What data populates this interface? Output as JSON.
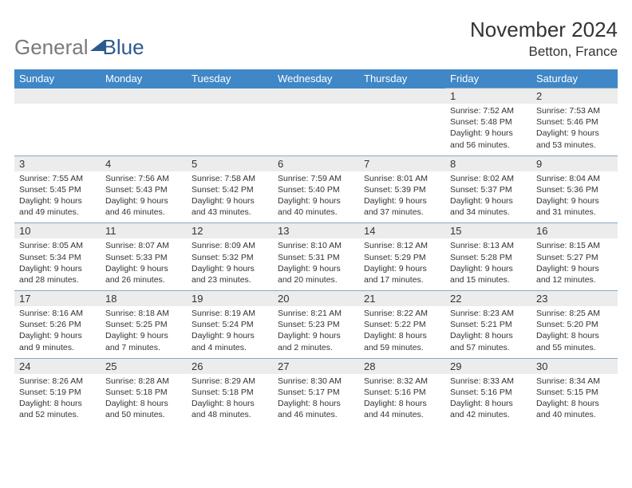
{
  "logo": {
    "part1": "General",
    "part2": "Blue"
  },
  "header": {
    "month": "November 2024",
    "location": "Betton, France"
  },
  "colors": {
    "header_bg": "#3f87c7",
    "header_fg": "#ffffff",
    "numrow_bg": "#ececec",
    "numrow_border": "#8aa9c4",
    "body_text": "#333333",
    "logo_gray": "#7a7a7a",
    "logo_blue": "#2c5a8f"
  },
  "dow": [
    "Sunday",
    "Monday",
    "Tuesday",
    "Wednesday",
    "Thursday",
    "Friday",
    "Saturday"
  ],
  "weeks": [
    {
      "nums": [
        "",
        "",
        "",
        "",
        "",
        "1",
        "2"
      ],
      "cells": [
        null,
        null,
        null,
        null,
        null,
        {
          "sunrise": "Sunrise: 7:52 AM",
          "sunset": "Sunset: 5:48 PM",
          "d1": "Daylight: 9 hours",
          "d2": "and 56 minutes."
        },
        {
          "sunrise": "Sunrise: 7:53 AM",
          "sunset": "Sunset: 5:46 PM",
          "d1": "Daylight: 9 hours",
          "d2": "and 53 minutes."
        }
      ]
    },
    {
      "nums": [
        "3",
        "4",
        "5",
        "6",
        "7",
        "8",
        "9"
      ],
      "cells": [
        {
          "sunrise": "Sunrise: 7:55 AM",
          "sunset": "Sunset: 5:45 PM",
          "d1": "Daylight: 9 hours",
          "d2": "and 49 minutes."
        },
        {
          "sunrise": "Sunrise: 7:56 AM",
          "sunset": "Sunset: 5:43 PM",
          "d1": "Daylight: 9 hours",
          "d2": "and 46 minutes."
        },
        {
          "sunrise": "Sunrise: 7:58 AM",
          "sunset": "Sunset: 5:42 PM",
          "d1": "Daylight: 9 hours",
          "d2": "and 43 minutes."
        },
        {
          "sunrise": "Sunrise: 7:59 AM",
          "sunset": "Sunset: 5:40 PM",
          "d1": "Daylight: 9 hours",
          "d2": "and 40 minutes."
        },
        {
          "sunrise": "Sunrise: 8:01 AM",
          "sunset": "Sunset: 5:39 PM",
          "d1": "Daylight: 9 hours",
          "d2": "and 37 minutes."
        },
        {
          "sunrise": "Sunrise: 8:02 AM",
          "sunset": "Sunset: 5:37 PM",
          "d1": "Daylight: 9 hours",
          "d2": "and 34 minutes."
        },
        {
          "sunrise": "Sunrise: 8:04 AM",
          "sunset": "Sunset: 5:36 PM",
          "d1": "Daylight: 9 hours",
          "d2": "and 31 minutes."
        }
      ]
    },
    {
      "nums": [
        "10",
        "11",
        "12",
        "13",
        "14",
        "15",
        "16"
      ],
      "cells": [
        {
          "sunrise": "Sunrise: 8:05 AM",
          "sunset": "Sunset: 5:34 PM",
          "d1": "Daylight: 9 hours",
          "d2": "and 28 minutes."
        },
        {
          "sunrise": "Sunrise: 8:07 AM",
          "sunset": "Sunset: 5:33 PM",
          "d1": "Daylight: 9 hours",
          "d2": "and 26 minutes."
        },
        {
          "sunrise": "Sunrise: 8:09 AM",
          "sunset": "Sunset: 5:32 PM",
          "d1": "Daylight: 9 hours",
          "d2": "and 23 minutes."
        },
        {
          "sunrise": "Sunrise: 8:10 AM",
          "sunset": "Sunset: 5:31 PM",
          "d1": "Daylight: 9 hours",
          "d2": "and 20 minutes."
        },
        {
          "sunrise": "Sunrise: 8:12 AM",
          "sunset": "Sunset: 5:29 PM",
          "d1": "Daylight: 9 hours",
          "d2": "and 17 minutes."
        },
        {
          "sunrise": "Sunrise: 8:13 AM",
          "sunset": "Sunset: 5:28 PM",
          "d1": "Daylight: 9 hours",
          "d2": "and 15 minutes."
        },
        {
          "sunrise": "Sunrise: 8:15 AM",
          "sunset": "Sunset: 5:27 PM",
          "d1": "Daylight: 9 hours",
          "d2": "and 12 minutes."
        }
      ]
    },
    {
      "nums": [
        "17",
        "18",
        "19",
        "20",
        "21",
        "22",
        "23"
      ],
      "cells": [
        {
          "sunrise": "Sunrise: 8:16 AM",
          "sunset": "Sunset: 5:26 PM",
          "d1": "Daylight: 9 hours",
          "d2": "and 9 minutes."
        },
        {
          "sunrise": "Sunrise: 8:18 AM",
          "sunset": "Sunset: 5:25 PM",
          "d1": "Daylight: 9 hours",
          "d2": "and 7 minutes."
        },
        {
          "sunrise": "Sunrise: 8:19 AM",
          "sunset": "Sunset: 5:24 PM",
          "d1": "Daylight: 9 hours",
          "d2": "and 4 minutes."
        },
        {
          "sunrise": "Sunrise: 8:21 AM",
          "sunset": "Sunset: 5:23 PM",
          "d1": "Daylight: 9 hours",
          "d2": "and 2 minutes."
        },
        {
          "sunrise": "Sunrise: 8:22 AM",
          "sunset": "Sunset: 5:22 PM",
          "d1": "Daylight: 8 hours",
          "d2": "and 59 minutes."
        },
        {
          "sunrise": "Sunrise: 8:23 AM",
          "sunset": "Sunset: 5:21 PM",
          "d1": "Daylight: 8 hours",
          "d2": "and 57 minutes."
        },
        {
          "sunrise": "Sunrise: 8:25 AM",
          "sunset": "Sunset: 5:20 PM",
          "d1": "Daylight: 8 hours",
          "d2": "and 55 minutes."
        }
      ]
    },
    {
      "nums": [
        "24",
        "25",
        "26",
        "27",
        "28",
        "29",
        "30"
      ],
      "cells": [
        {
          "sunrise": "Sunrise: 8:26 AM",
          "sunset": "Sunset: 5:19 PM",
          "d1": "Daylight: 8 hours",
          "d2": "and 52 minutes."
        },
        {
          "sunrise": "Sunrise: 8:28 AM",
          "sunset": "Sunset: 5:18 PM",
          "d1": "Daylight: 8 hours",
          "d2": "and 50 minutes."
        },
        {
          "sunrise": "Sunrise: 8:29 AM",
          "sunset": "Sunset: 5:18 PM",
          "d1": "Daylight: 8 hours",
          "d2": "and 48 minutes."
        },
        {
          "sunrise": "Sunrise: 8:30 AM",
          "sunset": "Sunset: 5:17 PM",
          "d1": "Daylight: 8 hours",
          "d2": "and 46 minutes."
        },
        {
          "sunrise": "Sunrise: 8:32 AM",
          "sunset": "Sunset: 5:16 PM",
          "d1": "Daylight: 8 hours",
          "d2": "and 44 minutes."
        },
        {
          "sunrise": "Sunrise: 8:33 AM",
          "sunset": "Sunset: 5:16 PM",
          "d1": "Daylight: 8 hours",
          "d2": "and 42 minutes."
        },
        {
          "sunrise": "Sunrise: 8:34 AM",
          "sunset": "Sunset: 5:15 PM",
          "d1": "Daylight: 8 hours",
          "d2": "and 40 minutes."
        }
      ]
    }
  ]
}
